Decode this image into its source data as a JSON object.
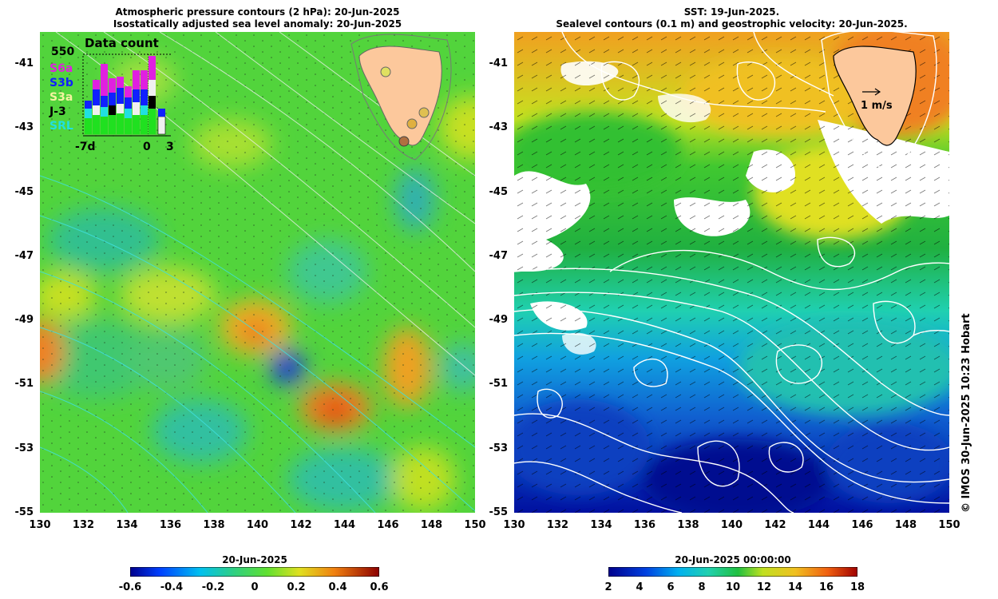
{
  "left_panel": {
    "title_line1": "Atmospheric pressure contours (2 hPa): 20-Jun-2025",
    "title_line2": "Isostatically adjusted sea level anomaly: 20-Jun-2025",
    "y_ticks": [
      "-41",
      "-43",
      "-45",
      "-47",
      "-49",
      "-51",
      "-53",
      "-55"
    ],
    "x_ticks": [
      "130",
      "132",
      "134",
      "136",
      "138",
      "140",
      "142",
      "144",
      "146",
      "148",
      "150"
    ],
    "inset": {
      "title": "Data count",
      "max_label": "550",
      "missions": [
        {
          "name": "S6a",
          "color": "#e020e0"
        },
        {
          "name": "S3b",
          "color": "#1020ff"
        },
        {
          "name": "S3a",
          "color": "#f0f0f0"
        },
        {
          "name": "J-3",
          "color": "#000000"
        },
        {
          "name": "SRL",
          "color": "#20e0e0"
        }
      ],
      "x_labels": [
        "-7d",
        "0",
        "3"
      ]
    },
    "colorbar": {
      "title": "20-Jun-2025",
      "ticks": [
        "-0.6",
        "-0.4",
        "-0.2",
        "0",
        "0.2",
        "0.4",
        "0.6"
      ]
    }
  },
  "right_panel": {
    "title_line1": "SST: 19-Jun-2025.",
    "title_line2": "Sealevel contours (0.1 m) and geostrophic velocity: 20-Jun-2025.",
    "y_ticks": [
      "-41",
      "-43",
      "-45",
      "-47",
      "-49",
      "-51",
      "-53",
      "-55"
    ],
    "x_ticks": [
      "130",
      "132",
      "134",
      "136",
      "138",
      "140",
      "142",
      "144",
      "146",
      "148",
      "150"
    ],
    "velocity_label": "1 m/s",
    "colorbar": {
      "title": "20-Jun-2025 00:00:00",
      "ticks": [
        "2",
        "4",
        "6",
        "8",
        "10",
        "12",
        "14",
        "16",
        "18"
      ]
    }
  },
  "copyright": "© IMOS 30-Jun-2025 10:23 Hobart",
  "colors": {
    "land": "#fcc89c",
    "anomaly_low": "#00008c",
    "anomaly_mid": "#40d040",
    "anomaly_high": "#8c0000",
    "contour_left": "#40e0e0",
    "contour_right": "#ffffff"
  }
}
